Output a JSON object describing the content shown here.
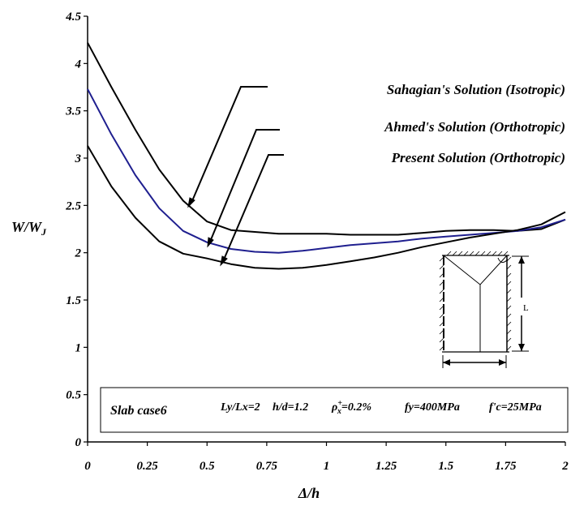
{
  "chart_data": {
    "type": "line",
    "xlabel": "Δ/h",
    "ylabel": "W/W",
    "ylabel_sub": "J",
    "xlim": [
      0,
      2
    ],
    "ylim": [
      0,
      4.5
    ],
    "x_ticks": [
      "0",
      "0.25",
      "0.5",
      "0.75",
      "1",
      "1.25",
      "1.5",
      "1.75",
      "2"
    ],
    "y_ticks": [
      "0",
      "0.5",
      "1",
      "1.5",
      "2",
      "2.5",
      "3",
      "3.5",
      "4",
      "4.5"
    ],
    "x_tick_values": [
      0,
      0.25,
      0.5,
      0.75,
      1,
      1.25,
      1.5,
      1.75,
      2
    ],
    "y_tick_values": [
      0,
      0.5,
      1,
      1.5,
      2,
      2.5,
      3,
      3.5,
      4,
      4.5
    ],
    "grid": false,
    "series": [
      {
        "name": "Sahagian's Solution (Isotropic)",
        "color": "#000000",
        "x": [
          0,
          0.1,
          0.2,
          0.3,
          0.4,
          0.5,
          0.6,
          0.7,
          0.8,
          0.9,
          1.0,
          1.1,
          1.2,
          1.3,
          1.4,
          1.5,
          1.6,
          1.7,
          1.8,
          1.9,
          2.0
        ],
        "y": [
          4.22,
          3.75,
          3.3,
          2.88,
          2.55,
          2.33,
          2.24,
          2.22,
          2.2,
          2.2,
          2.2,
          2.19,
          2.19,
          2.19,
          2.21,
          2.23,
          2.24,
          2.24,
          2.23,
          2.25,
          2.35
        ]
      },
      {
        "name": "Ahmed's Solution (Orthotropic)",
        "color": "#1f1f8f",
        "x": [
          0,
          0.1,
          0.2,
          0.3,
          0.4,
          0.5,
          0.6,
          0.7,
          0.8,
          0.9,
          1.0,
          1.1,
          1.2,
          1.3,
          1.4,
          1.5,
          1.6,
          1.7,
          1.8,
          1.9,
          2.0
        ],
        "y": [
          3.73,
          3.25,
          2.82,
          2.47,
          2.23,
          2.11,
          2.04,
          2.01,
          2.0,
          2.02,
          2.05,
          2.08,
          2.1,
          2.12,
          2.15,
          2.17,
          2.19,
          2.21,
          2.23,
          2.27,
          2.35
        ]
      },
      {
        "name": "Present Solution (Orthotropic)",
        "color": "#000000",
        "x": [
          0,
          0.1,
          0.2,
          0.3,
          0.4,
          0.5,
          0.6,
          0.7,
          0.8,
          0.9,
          1.0,
          1.1,
          1.2,
          1.3,
          1.4,
          1.5,
          1.6,
          1.7,
          1.8,
          1.9,
          2.0
        ],
        "y": [
          3.13,
          2.7,
          2.37,
          2.12,
          1.99,
          1.94,
          1.88,
          1.84,
          1.83,
          1.84,
          1.87,
          1.91,
          1.95,
          2.0,
          2.06,
          2.11,
          2.16,
          2.2,
          2.24,
          2.3,
          2.43
        ]
      }
    ],
    "info_box": {
      "case": "Slab case6",
      "ratio": "Ly/Lx=2",
      "hd": "h/d=1.2",
      "rho_symbol": "ρ",
      "rho_sup": "+",
      "rho_sub": "x",
      "rho_value": "=0.2%",
      "fy": "fy=400MPa",
      "fc": "f'c=25MPa"
    },
    "inset": {
      "label_L": "L"
    }
  }
}
